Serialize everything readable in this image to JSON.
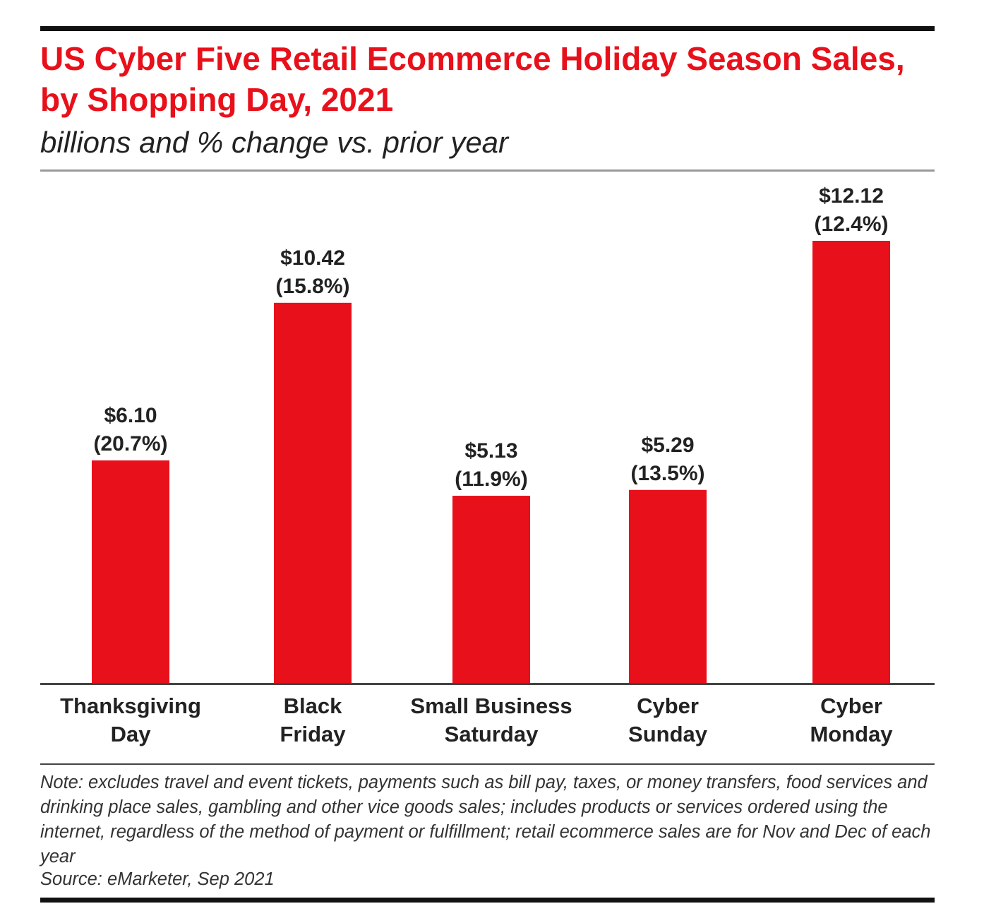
{
  "chart_data": {
    "type": "bar",
    "title": "US Cyber Five Retail Ecommerce Holiday Season Sales, by Shopping Day, 2021",
    "subtitle": "billions and % change vs. prior year",
    "categories": [
      "Thanksgiving Day",
      "Black Friday",
      "Small Business Saturday",
      "Cyber Sunday",
      "Cyber Monday"
    ],
    "values": [
      6.1,
      10.42,
      5.13,
      5.29,
      12.12
    ],
    "value_labels": [
      "$6.10",
      "$10.42",
      "$5.13",
      "$5.29",
      "$12.12"
    ],
    "change_values": [
      20.7,
      15.8,
      11.9,
      13.5,
      12.4
    ],
    "change_labels": [
      "(20.7%)",
      "(15.8%)",
      "(11.9%)",
      "(13.5%)",
      "(12.4%)"
    ],
    "color": "#e8101a",
    "note": "Note: excludes travel and event tickets, payments such as bill pay, taxes, or money transfers, food services and drinking place sales, gambling and other vice goods sales; includes products or services ordered using the internet, regardless of the method of payment or fulfillment; retail ecommerce sales are for Nov and Dec of each year",
    "source": "Source: eMarketer, Sep 2021"
  }
}
